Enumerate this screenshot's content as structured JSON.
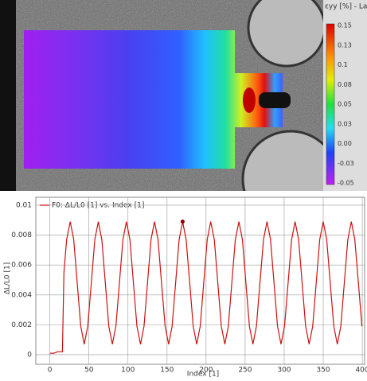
{
  "colorbar": {
    "title": "εyy [%] - Lagrange",
    "ticks": [
      "0.15",
      "0.13",
      "0.1",
      "0.08",
      "0.05",
      "0.03",
      "0.00",
      "-0.03",
      "-0.05"
    ]
  },
  "chart_data": {
    "type": "line",
    "legend": "F0: ΔL/L0 [1] vs. Index [1]",
    "x_label": "Index [1]",
    "y_label": "ΔL/L0 [1]",
    "xlim": [
      -18,
      403
    ],
    "ylim": [
      -0.00064,
      0.01053
    ],
    "xticks": [
      0,
      50,
      100,
      150,
      200,
      250,
      300,
      350,
      400
    ],
    "yticks": [
      0,
      0.002,
      0.004,
      0.006,
      0.008,
      0.01
    ],
    "grid": true,
    "marker_index": 170,
    "series": [
      {
        "name": "F0",
        "color": "#cc1111",
        "x": [
          0,
          5,
          10,
          16,
          18,
          21.5,
          26,
          30.5,
          35,
          39.5,
          44,
          48.5,
          53,
          57.5,
          62,
          66.5,
          71,
          75.5,
          80,
          84.5,
          89,
          93.5,
          98,
          102.5,
          107,
          111.5,
          116,
          120.5,
          125,
          129.5,
          134,
          138.5,
          143,
          147.5,
          152,
          156.5,
          161,
          165.5,
          170,
          174.5,
          179,
          183.5,
          188,
          192.5,
          197,
          201.5,
          206,
          210.5,
          215,
          219.5,
          224,
          228.5,
          233,
          237.5,
          242,
          246.5,
          251,
          255.5,
          260,
          264.5,
          269,
          273.5,
          278,
          282.5,
          287,
          291.5,
          296,
          300.5,
          305,
          309.5,
          314,
          318.5,
          323,
          327.5,
          332,
          336.5,
          341,
          345.5,
          350,
          354.5,
          359,
          363.5,
          368,
          372.5,
          377,
          381.5,
          386,
          390.5,
          395,
          399.5
        ],
        "values": [
          0.0001,
          0.0001,
          0.0002,
          0.0002,
          0.0055,
          0.0077,
          0.0089,
          0.0077,
          0.0048,
          0.0019,
          0.0007,
          0.0019,
          0.0048,
          0.0077,
          0.0089,
          0.0077,
          0.0048,
          0.0019,
          0.0007,
          0.0019,
          0.0048,
          0.0077,
          0.0089,
          0.0077,
          0.0048,
          0.0019,
          0.0007,
          0.0019,
          0.0048,
          0.0077,
          0.0089,
          0.0077,
          0.0048,
          0.0019,
          0.0007,
          0.0019,
          0.0048,
          0.0077,
          0.0089,
          0.0077,
          0.0048,
          0.0019,
          0.0007,
          0.0019,
          0.0048,
          0.0077,
          0.0089,
          0.0077,
          0.0048,
          0.0019,
          0.0007,
          0.0019,
          0.0048,
          0.0077,
          0.0089,
          0.0077,
          0.0048,
          0.0019,
          0.0007,
          0.0019,
          0.0048,
          0.0077,
          0.0089,
          0.0077,
          0.0048,
          0.0019,
          0.0007,
          0.0019,
          0.0048,
          0.0077,
          0.0089,
          0.0077,
          0.0048,
          0.0019,
          0.0007,
          0.0019,
          0.0048,
          0.0077,
          0.0089,
          0.0077,
          0.0048,
          0.0019,
          0.0007,
          0.0019,
          0.0048,
          0.0077,
          0.0089,
          0.0077,
          0.0048,
          0.0019
        ]
      }
    ]
  }
}
